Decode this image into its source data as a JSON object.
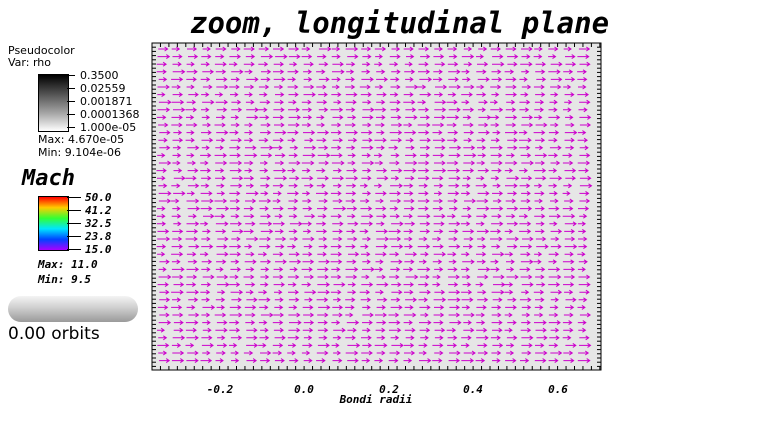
{
  "title": "zoom, longitudinal plane",
  "pseudocolor": {
    "name": "Pseudocolor",
    "var": "Var: rho",
    "ticks": [
      "0.3500",
      "0.02559",
      "0.001871",
      "0.0001368",
      "1.000e-05"
    ],
    "max": "Max:  4.670e-05",
    "min": "Min:  9.104e-06"
  },
  "mach": {
    "label": "Mach",
    "ticks": [
      "50.0",
      "41.2",
      "32.5",
      "23.8",
      "15.0"
    ],
    "max": "Max:  11.0",
    "min": "Min:  9.5"
  },
  "orbits": "0.00 orbits",
  "plot": {
    "xlabel": "Bondi radii",
    "xticks": [
      "-0.2",
      "0.0",
      "0.2",
      "0.4",
      "0.6"
    ],
    "arrow_color": "#cc00cc",
    "background_color": "#e6e6e6"
  },
  "colors": {
    "colorbar_gray": [
      "#000000",
      "#ffffff"
    ],
    "mach_colormap": [
      "#ff0000",
      "#ffcc00",
      "#33ff33",
      "#00e5ff",
      "#0044ff",
      "#aa00ff"
    ]
  }
}
